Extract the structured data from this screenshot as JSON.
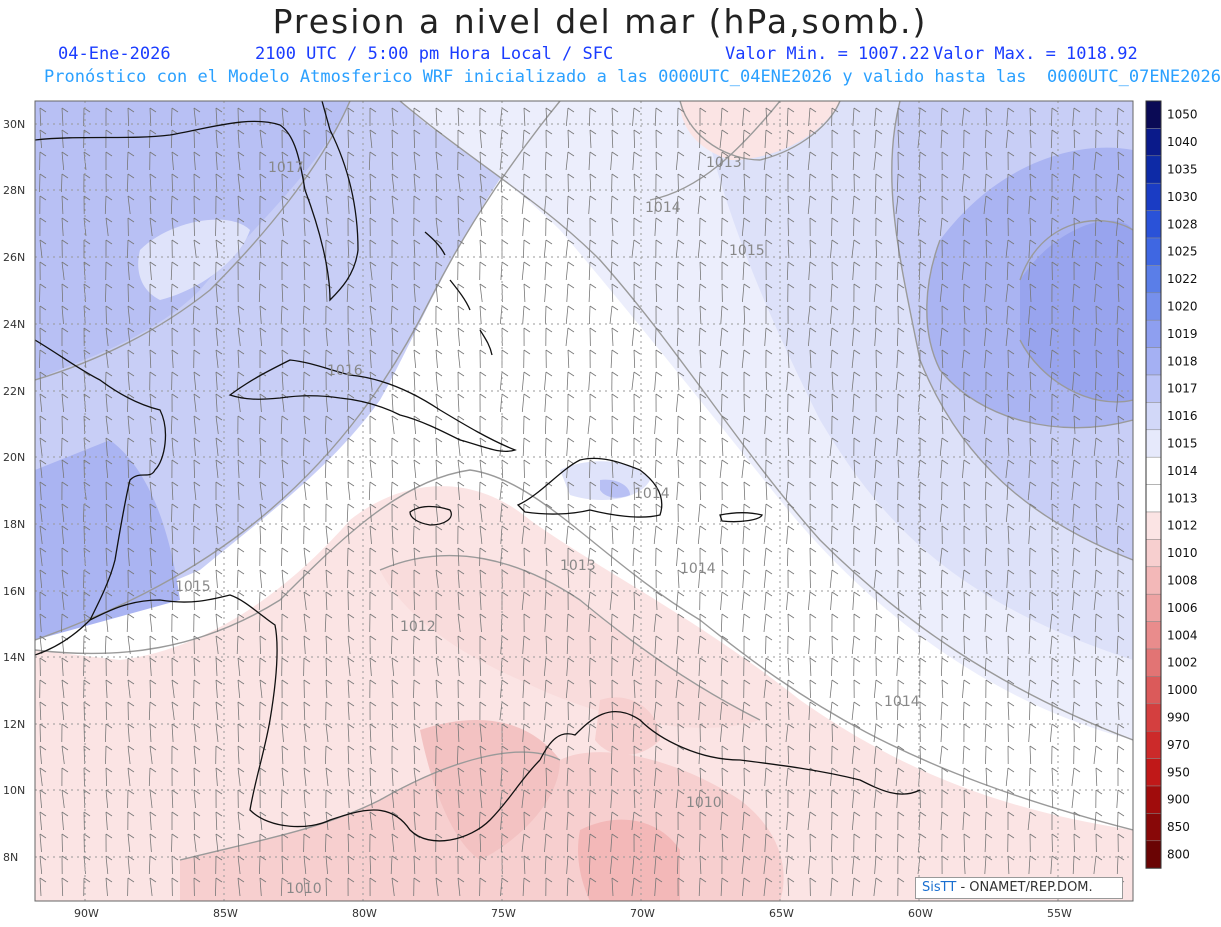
{
  "header": {
    "title": "Presion a nivel del mar (hPa,somb.)",
    "date": "04-Ene-2026",
    "time": "2100 UTC / 5:00 pm Hora Local / SFC",
    "min_label": "Valor Min. = 1007.22",
    "max_label": "Valor Max. = 1018.92",
    "model_line": "Pronóstico con el Modelo Atmosferico WRF inicializado a las 0000UTC_04ENE2026 y valido hasta las  0000UTC_07ENE2026"
  },
  "map": {
    "lat_ticks": [
      "30N",
      "28N",
      "26N",
      "24N",
      "22N",
      "20N",
      "18N",
      "16N",
      "14N",
      "12N",
      "10N",
      "8N"
    ],
    "lon_ticks": [
      "90W",
      "85W",
      "80W",
      "75W",
      "70W",
      "65W",
      "60W",
      "55W"
    ],
    "contour_labels": [
      "1017",
      "1014",
      "1013",
      "1015",
      "1016",
      "1014",
      "1013",
      "1014",
      "1015",
      "1012",
      "1014",
      "1010",
      "1010"
    ]
  },
  "colorbar": {
    "levels": [
      "1050",
      "1040",
      "1035",
      "1030",
      "1028",
      "1025",
      "1022",
      "1020",
      "1019",
      "1018",
      "1017",
      "1016",
      "1015",
      "1014",
      "1013",
      "1012",
      "1010",
      "1008",
      "1006",
      "1004",
      "1002",
      "1000",
      "990",
      "970",
      "950",
      "900",
      "850",
      "800"
    ],
    "colors": [
      "#0a0a55",
      "#0a1a8a",
      "#0d2aa6",
      "#1a3cc4",
      "#2a52d8",
      "#3f67e2",
      "#5a7ee8",
      "#7690ec",
      "#8e9ff0",
      "#a4b0f3",
      "#bcc4f6",
      "#d2d8f8",
      "#e6e9fb",
      "#ffffff",
      "#ffffff",
      "#fbe4e4",
      "#f7cfcf",
      "#f3b8b8",
      "#eea3a3",
      "#e98c8c",
      "#e27474",
      "#db5a5a",
      "#d43f3f",
      "#cc2a2a",
      "#c01818",
      "#a00c0c",
      "#880808",
      "#6a0404"
    ]
  },
  "credit": {
    "brand": "SisTT",
    "rest": "- ONAMET/REP.DOM."
  },
  "colors": {
    "header_blue": "#1a3cff",
    "model_line_blue": "#2aa0ff"
  }
}
